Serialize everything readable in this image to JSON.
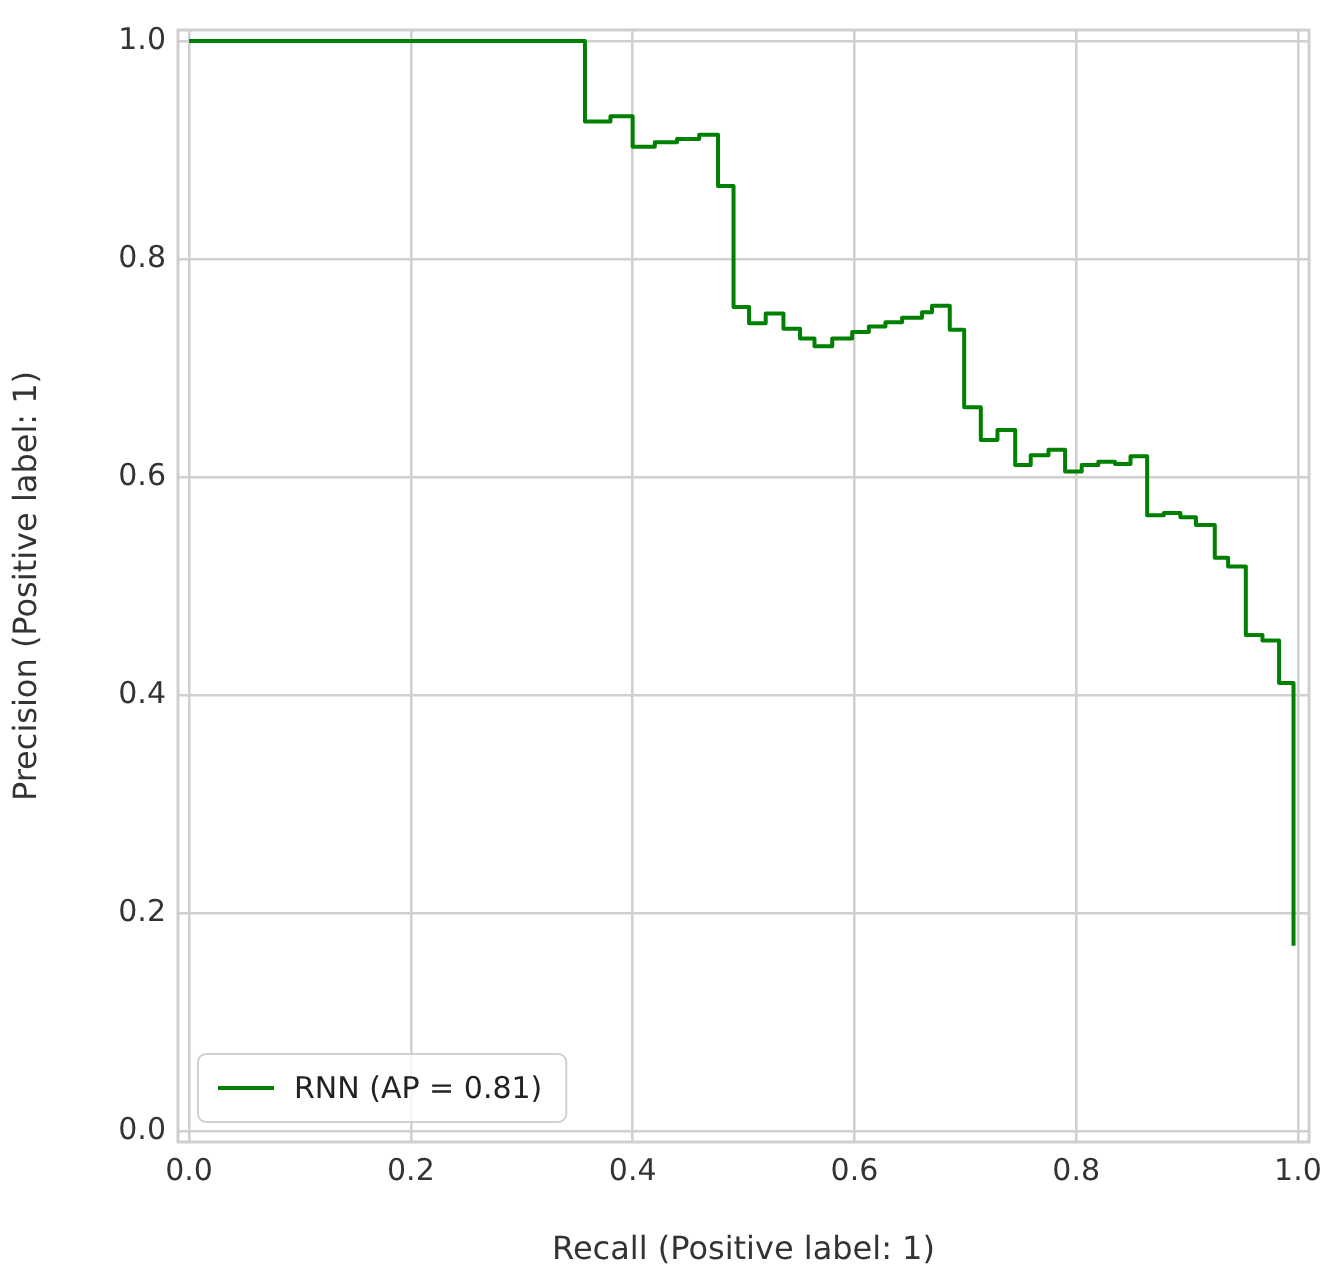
{
  "chart_data": {
    "type": "step",
    "xlabel": "Recall (Positive label: 1)",
    "ylabel": "Precision (Positive label: 1)",
    "xlim": [
      -0.01,
      1.01
    ],
    "ylim": [
      -0.01,
      1.01
    ],
    "xticks": [
      {
        "value": 0,
        "label": "0.0"
      },
      {
        "value": 0.2,
        "label": "0.2"
      },
      {
        "value": 0.4,
        "label": "0.4"
      },
      {
        "value": 0.6,
        "label": "0.6"
      },
      {
        "value": 0.8,
        "label": "0.8"
      },
      {
        "value": 1,
        "label": "1.0"
      }
    ],
    "yticks": [
      {
        "value": 0,
        "label": "0.0"
      },
      {
        "value": 0.2,
        "label": "0.2"
      },
      {
        "value": 0.4,
        "label": "0.4"
      },
      {
        "value": 0.6,
        "label": "0.6"
      },
      {
        "value": 0.8,
        "label": "0.8"
      },
      {
        "value": 1,
        "label": "1.0"
      }
    ],
    "grid": true,
    "legend": "bottom left",
    "marker": "none",
    "line_style": "solid",
    "series": [
      {
        "name": "RNN (AP = 0.81)",
        "color": "#008000",
        "x": [
          0,
          0.357,
          0.38,
          0.4,
          0.42,
          0.44,
          0.46,
          0.477,
          0.491,
          0.505,
          0.52,
          0.536,
          0.551,
          0.564,
          0.58,
          0.598,
          0.613,
          0.628,
          0.643,
          0.661,
          0.67,
          0.686,
          0.699,
          0.714,
          0.729,
          0.745,
          0.759,
          0.775,
          0.79,
          0.805,
          0.82,
          0.835,
          0.849,
          0.864,
          0.879,
          0.894,
          0.908,
          0.925,
          0.937,
          0.953,
          0.968,
          0.983,
          0.996
        ],
        "values": [
          1.0,
          0.926,
          0.931,
          0.903,
          0.907,
          0.91,
          0.914,
          0.867,
          0.756,
          0.741,
          0.75,
          0.736,
          0.727,
          0.72,
          0.727,
          0.733,
          0.738,
          0.742,
          0.746,
          0.751,
          0.757,
          0.735,
          0.664,
          0.634,
          0.643,
          0.611,
          0.62,
          0.625,
          0.605,
          0.611,
          0.614,
          0.612,
          0.619,
          0.565,
          0.567,
          0.563,
          0.556,
          0.526,
          0.518,
          0.455,
          0.45,
          0.411,
          0.17
        ]
      }
    ]
  }
}
